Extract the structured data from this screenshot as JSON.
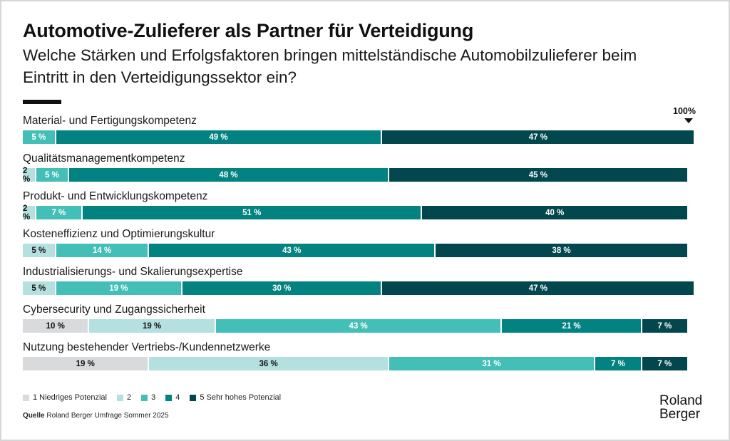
{
  "header": {
    "title": "Automotive-Zulieferer als Partner für Verteidigung",
    "subtitle": "Welche Stärken und Erfolgsfaktoren bringen mittelständische Automobilzulieferer beim Eintritt in den Verteidigungssektor ein?"
  },
  "total_marker": "100%",
  "legend": [
    {
      "label": "1  Niedriges Potenzial",
      "color": "#d9dadc"
    },
    {
      "label": "2",
      "color": "#b5e0e0"
    },
    {
      "label": "3",
      "color": "#43bfb8"
    },
    {
      "label": "4",
      "color": "#028381"
    },
    {
      "label": "5  Sehr hohes Potenzial",
      "color": "#02474d"
    }
  ],
  "source": {
    "prefix": "Quelle",
    "text": "Roland Berger Umfrage Sommer 2025"
  },
  "logo": {
    "line1": "Roland",
    "line2": "Berger"
  },
  "chart_data": {
    "type": "bar",
    "orientation": "horizontal",
    "stacked": true,
    "title": "Automotive-Zulieferer als Partner für Verteidigung",
    "subtitle": "Welche Stärken und Erfolgsfaktoren bringen mittelständische Automobilzulieferer beim Eintritt in den Verteidigungssektor ein?",
    "xlabel": "",
    "ylabel": "",
    "xlim": [
      0,
      100
    ],
    "unit": "%",
    "grid": false,
    "legend_position": "bottom-left",
    "categories": [
      "Material- und Fertigungskompetenz",
      "Qualitätsmanagementkompetenz",
      "Produkt- und Entwicklungskompetenz",
      "Kosteneffizienz und Optimierungskultur",
      "Industrialisierungs- und Skalierungsexpertise",
      "Cybersecurity und Zugangssicherheit",
      "Nutzung bestehender Vertriebs-/Kundennetzwerke"
    ],
    "series": [
      {
        "name": "1 Niedriges Potenzial",
        "color": "#d9dadc",
        "text_color": "#111111",
        "values": [
          0,
          0,
          0,
          0,
          0,
          10,
          19
        ]
      },
      {
        "name": "2",
        "color": "#b5e0e0",
        "text_color": "#111111",
        "values": [
          0,
          2,
          2,
          5,
          5,
          19,
          36
        ]
      },
      {
        "name": "3",
        "color": "#43bfb8",
        "text_color": "#ffffff",
        "values": [
          5,
          5,
          7,
          14,
          19,
          43,
          31
        ]
      },
      {
        "name": "4",
        "color": "#028381",
        "text_color": "#ffffff",
        "values": [
          49,
          48,
          51,
          43,
          30,
          21,
          7
        ]
      },
      {
        "name": "5 Sehr hohes Potenzial",
        "color": "#02474d",
        "text_color": "#ffffff",
        "values": [
          47,
          45,
          40,
          38,
          47,
          7,
          7
        ]
      }
    ],
    "annotations": [
      "100%"
    ]
  }
}
